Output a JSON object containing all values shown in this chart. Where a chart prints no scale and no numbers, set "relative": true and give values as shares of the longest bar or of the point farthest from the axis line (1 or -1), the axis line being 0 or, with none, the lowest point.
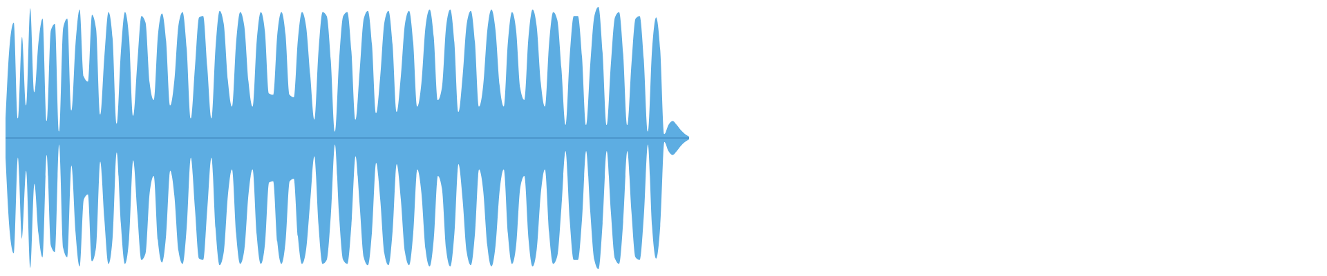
{
  "chart_data": {
    "type": "area",
    "relative": true,
    "ref_lines": [
      {
        "axis": "y",
        "value": 0,
        "color": "#3a7fb5"
      }
    ],
    "categories": [
      null,
      null,
      null,
      null,
      null,
      null,
      null,
      null,
      null,
      null,
      null,
      null,
      null,
      null,
      null,
      null,
      null,
      null,
      null,
      null,
      null,
      null,
      null,
      null,
      null,
      null,
      null,
      null,
      null,
      null,
      null,
      null,
      null,
      null,
      null,
      null,
      null,
      null,
      null,
      null,
      null,
      null,
      null,
      null,
      null,
      null,
      null,
      null,
      null,
      null,
      null,
      null,
      null,
      null,
      null,
      null,
      null,
      null,
      null,
      null,
      null,
      null,
      null,
      null,
      null,
      null,
      null,
      null,
      null,
      null,
      null,
      null,
      null,
      null,
      null,
      null,
      null,
      null,
      null,
      null,
      null,
      null,
      null,
      null,
      null,
      null,
      null,
      null,
      null,
      null,
      null,
      null,
      null,
      null,
      null,
      null,
      null,
      null,
      null,
      null,
      null,
      null,
      null,
      null,
      null,
      null,
      null,
      null,
      null,
      null,
      null,
      null,
      null,
      null,
      null,
      null,
      null,
      null,
      null,
      null,
      null,
      null,
      null,
      null,
      null,
      null,
      null,
      null,
      null,
      null,
      null,
      null,
      null,
      null,
      null,
      null,
      null,
      null,
      null,
      null,
      null,
      null,
      null,
      null,
      null,
      null,
      null,
      null,
      null,
      null,
      null,
      null,
      null,
      null,
      null,
      null,
      null,
      null,
      null,
      null,
      null,
      null,
      null,
      null,
      null,
      null,
      null
    ],
    "series": [
      {
        "color": "#5dade2",
        "values": [
          0.15,
          0.71,
          0.88,
          0.15,
          0.77,
          0.25,
          0.99,
          0.35,
          0.73,
          0.91,
          0.13,
          0.82,
          0.87,
          0.05,
          0.84,
          0.91,
          0.21,
          0.72,
          0.98,
          0.47,
          0.43,
          0.94,
          0.83,
          0.18,
          0.62,
          0.96,
          0.76,
          0.11,
          0.65,
          0.96,
          0.77,
          0.17,
          0.57,
          0.93,
          0.88,
          0.42,
          0.29,
          0.78,
          0.95,
          0.74,
          0.25,
          0.44,
          0.86,
          0.96,
          0.68,
          0.15,
          0.54,
          0.92,
          0.93,
          0.54,
          0.15,
          0.69,
          0.97,
          0.87,
          0.44,
          0.24,
          0.73,
          0.96,
          0.85,
          0.43,
          0.24,
          0.74,
          0.96,
          0.81,
          0.34,
          0.33,
          0.79,
          0.96,
          0.79,
          0.33,
          0.31,
          0.75,
          0.96,
          0.85,
          0.48,
          0.14,
          0.66,
          0.96,
          0.93,
          0.59,
          0.05,
          0.59,
          0.93,
          0.96,
          0.66,
          0.14,
          0.51,
          0.91,
          0.97,
          0.71,
          0.19,
          0.47,
          0.88,
          0.97,
          0.71,
          0.2,
          0.47,
          0.87,
          0.97,
          0.73,
          0.24,
          0.42,
          0.85,
          0.98,
          0.77,
          0.29,
          0.39,
          0.85,
          0.98,
          0.73,
          0.2,
          0.47,
          0.87,
          0.97,
          0.73,
          0.24,
          0.4,
          0.82,
          0.98,
          0.82,
          0.4,
          0.24,
          0.73,
          0.96,
          0.82,
          0.38,
          0.29,
          0.77,
          0.98,
          0.85,
          0.42,
          0.24,
          0.72,
          0.96,
          0.9,
          0.53,
          0.1,
          0.62,
          0.93,
          0.93,
          0.62,
          0.1,
          0.56,
          0.93,
          1,
          0.65,
          0.1,
          0.56,
          0.92,
          0.96,
          0.64,
          0.1,
          0.56,
          0.91,
          0.93,
          0.6,
          0.05,
          0.67,
          0.92,
          0.67,
          0.03,
          0.1,
          0.13,
          0.1,
          0.06,
          0.03,
          0.01
        ]
      },
      {
        "color": "#5dade2",
        "values": [
          -0.15,
          -0.71,
          -0.88,
          -0.15,
          -0.77,
          -0.25,
          -0.99,
          -0.35,
          -0.73,
          -0.91,
          -0.13,
          -0.82,
          -0.87,
          -0.05,
          -0.84,
          -0.91,
          -0.21,
          -0.72,
          -0.98,
          -0.47,
          -0.43,
          -0.94,
          -0.83,
          -0.18,
          -0.62,
          -0.96,
          -0.76,
          -0.11,
          -0.65,
          -0.96,
          -0.77,
          -0.17,
          -0.57,
          -0.93,
          -0.88,
          -0.42,
          -0.29,
          -0.78,
          -0.95,
          -0.74,
          -0.25,
          -0.44,
          -0.86,
          -0.96,
          -0.68,
          -0.15,
          -0.54,
          -0.92,
          -0.93,
          -0.54,
          -0.15,
          -0.69,
          -0.97,
          -0.87,
          -0.44,
          -0.24,
          -0.73,
          -0.96,
          -0.85,
          -0.43,
          -0.24,
          -0.74,
          -0.96,
          -0.81,
          -0.34,
          -0.33,
          -0.79,
          -0.96,
          -0.79,
          -0.33,
          -0.31,
          -0.75,
          -0.96,
          -0.85,
          -0.48,
          -0.14,
          -0.66,
          -0.96,
          -0.93,
          -0.59,
          -0.05,
          -0.59,
          -0.93,
          -0.96,
          -0.66,
          -0.14,
          -0.51,
          -0.91,
          -0.97,
          -0.71,
          -0.19,
          -0.47,
          -0.88,
          -0.97,
          -0.71,
          -0.2,
          -0.47,
          -0.87,
          -0.97,
          -0.73,
          -0.24,
          -0.42,
          -0.85,
          -0.98,
          -0.77,
          -0.29,
          -0.39,
          -0.85,
          -0.98,
          -0.73,
          -0.2,
          -0.47,
          -0.87,
          -0.97,
          -0.73,
          -0.24,
          -0.4,
          -0.82,
          -0.98,
          -0.82,
          -0.4,
          -0.24,
          -0.73,
          -0.96,
          -0.82,
          -0.38,
          -0.29,
          -0.77,
          -0.98,
          -0.85,
          -0.42,
          -0.24,
          -0.72,
          -0.96,
          -0.9,
          -0.53,
          -0.1,
          -0.62,
          -0.93,
          -0.93,
          -0.62,
          -0.1,
          -0.56,
          -0.93,
          -1,
          -0.65,
          -0.1,
          -0.56,
          -0.92,
          -0.96,
          -0.64,
          -0.1,
          -0.56,
          -0.91,
          -0.93,
          -0.6,
          -0.05,
          -0.67,
          -0.92,
          -0.67,
          -0.03,
          -0.1,
          -0.13,
          -0.1,
          -0.06,
          -0.03,
          -0.01
        ]
      }
    ]
  }
}
